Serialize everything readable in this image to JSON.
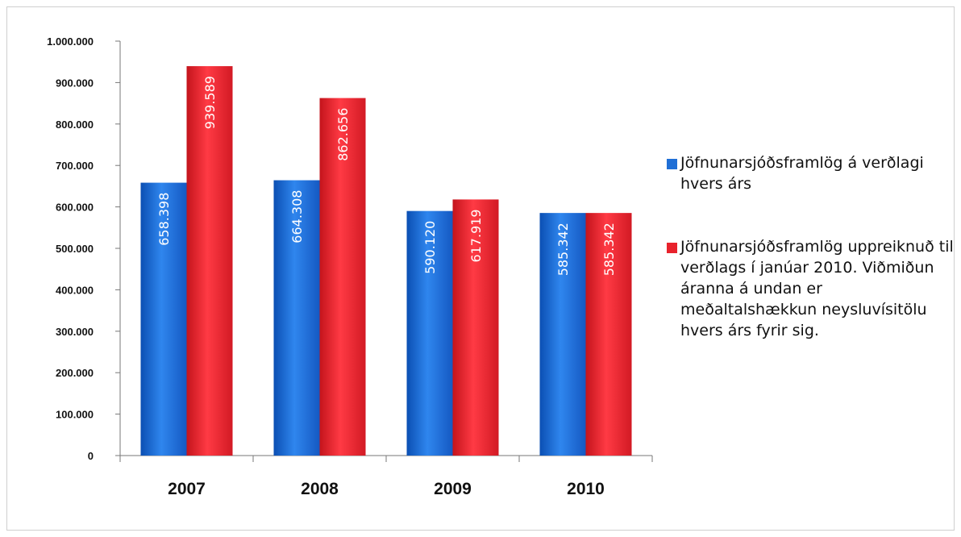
{
  "chart_data": {
    "type": "bar",
    "categories": [
      "2007",
      "2008",
      "2009",
      "2010"
    ],
    "series": [
      {
        "name": "Jöfnunarsjóðsframlög á verðlagi hvers árs",
        "values": [
          658398,
          664308,
          590120,
          585342
        ],
        "labels": [
          "658.398",
          "664.308",
          "590.120",
          "585.342"
        ],
        "color": "#1f6fd6"
      },
      {
        "name": "Jöfnunarsjóðsframlög uppreiknuð til verðlags í janúar 2010.  Viðmiðun áranna á undan er meðaltalshækkun neysluvísitölu hvers árs fyrir sig.",
        "values": [
          939589,
          862656,
          617919,
          585342
        ],
        "labels": [
          "939.589",
          "862.656",
          "617.919",
          "585.342"
        ],
        "color": "#e8222c"
      }
    ],
    "ylim": [
      0,
      1000000
    ],
    "yticks": [
      0,
      100000,
      200000,
      300000,
      400000,
      500000,
      600000,
      700000,
      800000,
      900000,
      1000000
    ],
    "ytick_labels": [
      "0",
      "100.000",
      "200.000",
      "300.000",
      "400.000",
      "500.000",
      "600.000",
      "700.000",
      "800.000",
      "900.000",
      "1.000.000"
    ],
    "grid": false,
    "legend_position": "right"
  }
}
